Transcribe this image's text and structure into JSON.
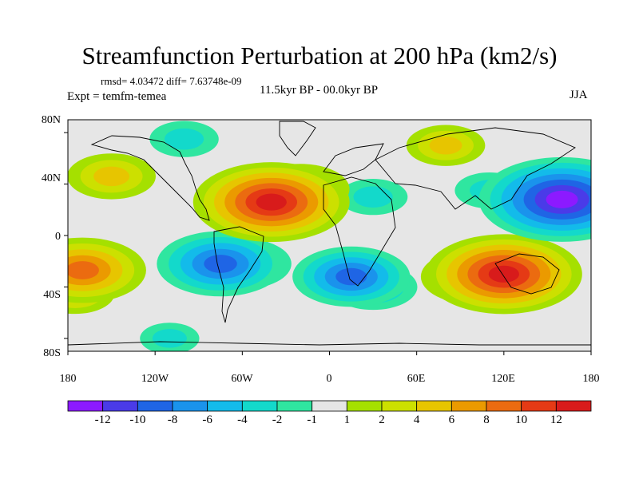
{
  "title": "Streamfunction Perturbation at 200 hPa (km2/s)",
  "stats": "rmsd= 4.03472 diff= 7.63748e-09",
  "experiment": "Expt = temfm-temea",
  "period": "11.5kyr BP - 00.0kyr BP",
  "season": "JJA",
  "chart_data": {
    "type": "heatmap",
    "title": "Streamfunction Perturbation at 200 hPa (km2/s)",
    "units": "km2/s",
    "x_range": [
      -180,
      180
    ],
    "y_range": [
      -90,
      90
    ],
    "lat_ticks": [
      "80N",
      "40N",
      "0",
      "40S",
      "80S"
    ],
    "lat_tick_values": [
      80,
      40,
      0,
      -40,
      -80
    ],
    "lon_ticks": [
      "180",
      "120W",
      "60W",
      "0",
      "60E",
      "120E",
      "180"
    ],
    "lon_tick_values": [
      -180,
      -120,
      -60,
      0,
      60,
      120,
      180
    ],
    "colorbar_labels": [
      "-12",
      "-10",
      "-8",
      "-6",
      "-4",
      "-2",
      "-1",
      "1",
      "2",
      "4",
      "6",
      "8",
      "10",
      "12"
    ],
    "colorbar_levels": [
      -12,
      -10,
      -8,
      -6,
      -4,
      -2,
      -1,
      1,
      2,
      4,
      6,
      8,
      10,
      12
    ],
    "colorbar_colors": [
      "#8c1aff",
      "#4a3be8",
      "#1f65e5",
      "#1a93ec",
      "#13bbea",
      "#13d9cb",
      "#2fe6a0",
      "#e6e6e6",
      "#a5e000",
      "#cce000",
      "#e7c500",
      "#eb9a00",
      "#eb6b10",
      "#e53a15",
      "#d81b1b"
    ],
    "anomalies": [
      {
        "lon": 160,
        "lat": 28,
        "value": -13
      },
      {
        "lon": 150,
        "lat": 25,
        "value": -8
      },
      {
        "lon": 110,
        "lat": 35,
        "value": -3
      },
      {
        "lon": 30,
        "lat": 30,
        "value": -3
      },
      {
        "lon": -40,
        "lat": 26,
        "value": 12
      },
      {
        "lon": -20,
        "lat": 36,
        "value": 6
      },
      {
        "lon": -150,
        "lat": 46,
        "value": 5
      },
      {
        "lon": 120,
        "lat": -30,
        "value": 12
      },
      {
        "lon": 100,
        "lat": -32,
        "value": 7
      },
      {
        "lon": -170,
        "lat": -27,
        "value": 9
      },
      {
        "lon": -175,
        "lat": -45,
        "value": 4
      },
      {
        "lon": -75,
        "lat": -22,
        "value": -9
      },
      {
        "lon": -60,
        "lat": -22,
        "value": -6
      },
      {
        "lon": 15,
        "lat": -32,
        "value": -8
      },
      {
        "lon": 30,
        "lat": -40,
        "value": -5
      },
      {
        "lon": -100,
        "lat": 75,
        "value": -3
      },
      {
        "lon": 80,
        "lat": 70,
        "value": 4
      },
      {
        "lon": -110,
        "lat": -80,
        "value": -2
      }
    ]
  }
}
